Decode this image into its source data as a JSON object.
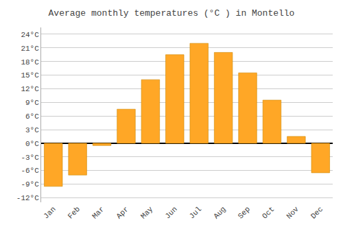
{
  "chart_data": {
    "type": "bar",
    "title": "Average monthly temperatures (°C ) in Montello",
    "categories": [
      "Jan",
      "Feb",
      "Mar",
      "Apr",
      "May",
      "Jun",
      "Jul",
      "Aug",
      "Sep",
      "Oct",
      "Nov",
      "Dec"
    ],
    "values": [
      -9.5,
      -7.0,
      -0.5,
      7.5,
      14.0,
      19.5,
      22.0,
      20.0,
      15.5,
      9.5,
      1.5,
      -6.5
    ],
    "color": "#FFA726",
    "ylim": [
      -13,
      25.5
    ],
    "yticks": [
      {
        "value": -12,
        "label": "-12°C"
      },
      {
        "value": -9,
        "label": "-9°C"
      },
      {
        "value": -6,
        "label": "-6°C"
      },
      {
        "value": -3,
        "label": "-3°C"
      },
      {
        "value": 0,
        "label": "0°C"
      },
      {
        "value": 3,
        "label": "3°C"
      },
      {
        "value": 6,
        "label": "6°C"
      },
      {
        "value": 9,
        "label": "9°C"
      },
      {
        "value": 12,
        "label": "12°C"
      },
      {
        "value": 15,
        "label": "15°C"
      },
      {
        "value": 18,
        "label": "18°C"
      },
      {
        "value": 21,
        "label": "21°C"
      },
      {
        "value": 24,
        "label": "24°C"
      }
    ],
    "grid": true
  }
}
